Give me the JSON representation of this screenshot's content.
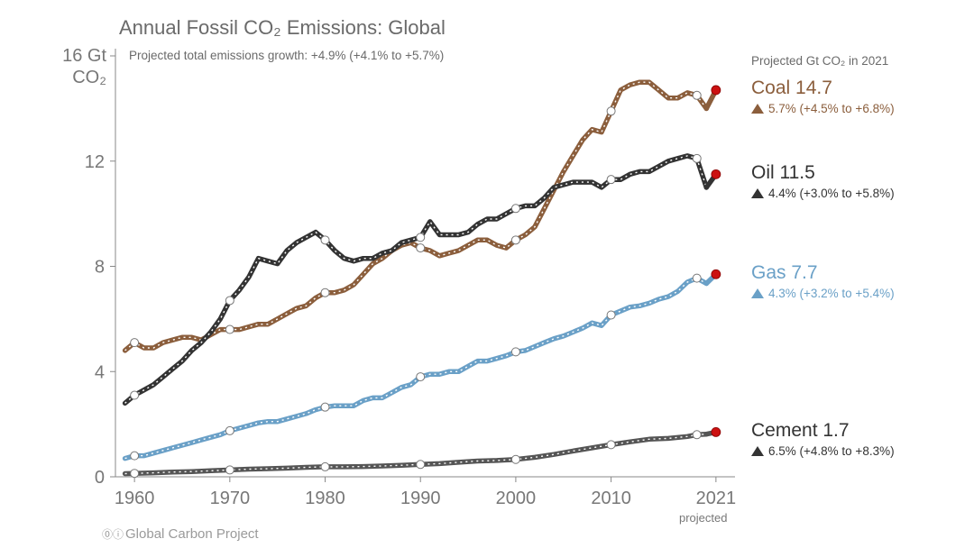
{
  "title": "Annual Fossil CO₂ Emissions: Global",
  "subtitle": "Projected total emissions growth: +4.9% (+4.1% to +5.7%)",
  "yunit": [
    "16 Gt",
    "CO₂"
  ],
  "panel_header": "Projected Gt CO₂ in 2021",
  "x_projected_label": "projected",
  "credit": "Global Carbon Project",
  "credit_icons": "⓪ⓘ",
  "colors": {
    "coal": "#8b5e3c",
    "oil": "#333333",
    "gas": "#6aa0c7",
    "cement": "#555555",
    "projection": "#cc1111",
    "axis": "#888888"
  },
  "legend": [
    {
      "key": "coal",
      "name": "Coal 14.7",
      "growth": "5.7% (+4.5% to +6.8%)"
    },
    {
      "key": "oil",
      "name": "Oil 11.5",
      "growth": "4.4% (+3.0% to +5.8%)"
    },
    {
      "key": "gas",
      "name": "Gas 7.7",
      "growth": "4.3% (+3.2% to +5.4%)"
    },
    {
      "key": "cement",
      "name": "Cement 1.7",
      "growth": "6.5% (+4.8% to +8.3%)"
    }
  ],
  "chart_data": {
    "type": "line",
    "title": "Annual Fossil CO₂ Emissions: Global",
    "ylabel": "Gt CO₂",
    "xlim": [
      1958,
      2023
    ],
    "ylim": [
      0,
      16
    ],
    "x_ticks": [
      1960,
      1970,
      1980,
      1990,
      2000,
      2010,
      2021
    ],
    "x_tick_labels": [
      "1960",
      "1970",
      "1980",
      "1990",
      "2000",
      "2010",
      "2021"
    ],
    "y_ticks": [
      0,
      4,
      8,
      12,
      16
    ],
    "y_tick_labels": [
      "0",
      "4",
      "8",
      "12",
      "16 Gt"
    ],
    "marker_years": [
      1960,
      1970,
      1980,
      1990,
      2000,
      2010,
      2019
    ],
    "projection_year": 2021,
    "series": [
      {
        "key": "coal",
        "name": "Coal",
        "points": [
          [
            1959,
            4.8
          ],
          [
            1960,
            5.1
          ],
          [
            1961,
            4.9
          ],
          [
            1962,
            4.9
          ],
          [
            1963,
            5.1
          ],
          [
            1964,
            5.2
          ],
          [
            1965,
            5.3
          ],
          [
            1966,
            5.3
          ],
          [
            1967,
            5.2
          ],
          [
            1968,
            5.4
          ],
          [
            1969,
            5.6
          ],
          [
            1970,
            5.6
          ],
          [
            1971,
            5.6
          ],
          [
            1972,
            5.7
          ],
          [
            1973,
            5.8
          ],
          [
            1974,
            5.8
          ],
          [
            1975,
            6.0
          ],
          [
            1976,
            6.2
          ],
          [
            1977,
            6.4
          ],
          [
            1978,
            6.5
          ],
          [
            1979,
            6.8
          ],
          [
            1980,
            7.0
          ],
          [
            1981,
            7.0
          ],
          [
            1982,
            7.1
          ],
          [
            1983,
            7.3
          ],
          [
            1984,
            7.7
          ],
          [
            1985,
            8.1
          ],
          [
            1986,
            8.3
          ],
          [
            1987,
            8.6
          ],
          [
            1988,
            8.8
          ],
          [
            1989,
            8.9
          ],
          [
            1990,
            8.7
          ],
          [
            1991,
            8.6
          ],
          [
            1992,
            8.4
          ],
          [
            1993,
            8.5
          ],
          [
            1994,
            8.6
          ],
          [
            1995,
            8.8
          ],
          [
            1996,
            9.0
          ],
          [
            1997,
            9.0
          ],
          [
            1998,
            8.8
          ],
          [
            1999,
            8.7
          ],
          [
            2000,
            9.0
          ],
          [
            2001,
            9.2
          ],
          [
            2002,
            9.5
          ],
          [
            2003,
            10.2
          ],
          [
            2004,
            10.9
          ],
          [
            2005,
            11.6
          ],
          [
            2006,
            12.2
          ],
          [
            2007,
            12.8
          ],
          [
            2008,
            13.2
          ],
          [
            2009,
            13.1
          ],
          [
            2010,
            13.9
          ],
          [
            2011,
            14.7
          ],
          [
            2012,
            14.9
          ],
          [
            2013,
            15.0
          ],
          [
            2014,
            15.0
          ],
          [
            2015,
            14.7
          ],
          [
            2016,
            14.4
          ],
          [
            2017,
            14.4
          ],
          [
            2018,
            14.6
          ],
          [
            2019,
            14.5
          ],
          [
            2020,
            14.0
          ]
        ],
        "projected": 14.7
      },
      {
        "key": "oil",
        "name": "Oil",
        "points": [
          [
            1959,
            2.8
          ],
          [
            1960,
            3.1
          ],
          [
            1961,
            3.3
          ],
          [
            1962,
            3.5
          ],
          [
            1963,
            3.8
          ],
          [
            1964,
            4.1
          ],
          [
            1965,
            4.4
          ],
          [
            1966,
            4.8
          ],
          [
            1967,
            5.1
          ],
          [
            1968,
            5.5
          ],
          [
            1969,
            6.0
          ],
          [
            1970,
            6.7
          ],
          [
            1971,
            7.1
          ],
          [
            1972,
            7.6
          ],
          [
            1973,
            8.3
          ],
          [
            1974,
            8.2
          ],
          [
            1975,
            8.1
          ],
          [
            1976,
            8.6
          ],
          [
            1977,
            8.9
          ],
          [
            1978,
            9.1
          ],
          [
            1979,
            9.3
          ],
          [
            1980,
            9.0
          ],
          [
            1981,
            8.6
          ],
          [
            1982,
            8.3
          ],
          [
            1983,
            8.2
          ],
          [
            1984,
            8.3
          ],
          [
            1985,
            8.3
          ],
          [
            1986,
            8.5
          ],
          [
            1987,
            8.6
          ],
          [
            1988,
            8.9
          ],
          [
            1989,
            9.0
          ],
          [
            1990,
            9.1
          ],
          [
            1991,
            9.7
          ],
          [
            1992,
            9.2
          ],
          [
            1993,
            9.2
          ],
          [
            1994,
            9.2
          ],
          [
            1995,
            9.3
          ],
          [
            1996,
            9.6
          ],
          [
            1997,
            9.8
          ],
          [
            1998,
            9.8
          ],
          [
            1999,
            10.0
          ],
          [
            2000,
            10.2
          ],
          [
            2001,
            10.3
          ],
          [
            2002,
            10.3
          ],
          [
            2003,
            10.6
          ],
          [
            2004,
            11.0
          ],
          [
            2005,
            11.1
          ],
          [
            2006,
            11.2
          ],
          [
            2007,
            11.2
          ],
          [
            2008,
            11.2
          ],
          [
            2009,
            11.0
          ],
          [
            2010,
            11.3
          ],
          [
            2011,
            11.3
          ],
          [
            2012,
            11.5
          ],
          [
            2013,
            11.6
          ],
          [
            2014,
            11.6
          ],
          [
            2015,
            11.8
          ],
          [
            2016,
            12.0
          ],
          [
            2017,
            12.1
          ],
          [
            2018,
            12.2
          ],
          [
            2019,
            12.1
          ],
          [
            2020,
            11.0
          ]
        ],
        "projected": 11.5
      },
      {
        "key": "gas",
        "name": "Gas",
        "points": [
          [
            1959,
            0.7
          ],
          [
            1960,
            0.8
          ],
          [
            1961,
            0.8
          ],
          [
            1962,
            0.9
          ],
          [
            1963,
            1.0
          ],
          [
            1964,
            1.1
          ],
          [
            1965,
            1.2
          ],
          [
            1966,
            1.3
          ],
          [
            1967,
            1.4
          ],
          [
            1968,
            1.5
          ],
          [
            1969,
            1.6
          ],
          [
            1970,
            1.75
          ],
          [
            1971,
            1.85
          ],
          [
            1972,
            1.95
          ],
          [
            1973,
            2.05
          ],
          [
            1974,
            2.1
          ],
          [
            1975,
            2.1
          ],
          [
            1976,
            2.2
          ],
          [
            1977,
            2.3
          ],
          [
            1978,
            2.4
          ],
          [
            1979,
            2.55
          ],
          [
            1980,
            2.65
          ],
          [
            1981,
            2.7
          ],
          [
            1982,
            2.7
          ],
          [
            1983,
            2.7
          ],
          [
            1984,
            2.9
          ],
          [
            1985,
            3.0
          ],
          [
            1986,
            3.0
          ],
          [
            1987,
            3.2
          ],
          [
            1988,
            3.4
          ],
          [
            1989,
            3.5
          ],
          [
            1990,
            3.8
          ],
          [
            1991,
            3.9
          ],
          [
            1992,
            3.9
          ],
          [
            1993,
            4.0
          ],
          [
            1994,
            4.0
          ],
          [
            1995,
            4.2
          ],
          [
            1996,
            4.4
          ],
          [
            1997,
            4.4
          ],
          [
            1998,
            4.5
          ],
          [
            1999,
            4.6
          ],
          [
            2000,
            4.75
          ],
          [
            2001,
            4.8
          ],
          [
            2002,
            4.95
          ],
          [
            2003,
            5.1
          ],
          [
            2004,
            5.25
          ],
          [
            2005,
            5.35
          ],
          [
            2006,
            5.5
          ],
          [
            2007,
            5.65
          ],
          [
            2008,
            5.85
          ],
          [
            2009,
            5.75
          ],
          [
            2010,
            6.15
          ],
          [
            2011,
            6.3
          ],
          [
            2012,
            6.45
          ],
          [
            2013,
            6.5
          ],
          [
            2014,
            6.6
          ],
          [
            2015,
            6.75
          ],
          [
            2016,
            6.85
          ],
          [
            2017,
            7.05
          ],
          [
            2018,
            7.4
          ],
          [
            2019,
            7.55
          ],
          [
            2020,
            7.35
          ]
        ],
        "projected": 7.7
      },
      {
        "key": "cement",
        "name": "Cement",
        "points": [
          [
            1959,
            0.12
          ],
          [
            1960,
            0.13
          ],
          [
            1962,
            0.15
          ],
          [
            1964,
            0.18
          ],
          [
            1966,
            0.2
          ],
          [
            1968,
            0.23
          ],
          [
            1970,
            0.26
          ],
          [
            1972,
            0.29
          ],
          [
            1974,
            0.31
          ],
          [
            1976,
            0.33
          ],
          [
            1978,
            0.36
          ],
          [
            1980,
            0.38
          ],
          [
            1982,
            0.38
          ],
          [
            1984,
            0.39
          ],
          [
            1986,
            0.41
          ],
          [
            1988,
            0.44
          ],
          [
            1990,
            0.47
          ],
          [
            1992,
            0.5
          ],
          [
            1994,
            0.55
          ],
          [
            1996,
            0.6
          ],
          [
            1998,
            0.62
          ],
          [
            2000,
            0.66
          ],
          [
            2002,
            0.74
          ],
          [
            2004,
            0.85
          ],
          [
            2006,
            0.98
          ],
          [
            2008,
            1.1
          ],
          [
            2010,
            1.22
          ],
          [
            2012,
            1.33
          ],
          [
            2014,
            1.43
          ],
          [
            2016,
            1.46
          ],
          [
            2018,
            1.53
          ],
          [
            2019,
            1.6
          ],
          [
            2020,
            1.62
          ]
        ],
        "projected": 1.7
      }
    ]
  }
}
